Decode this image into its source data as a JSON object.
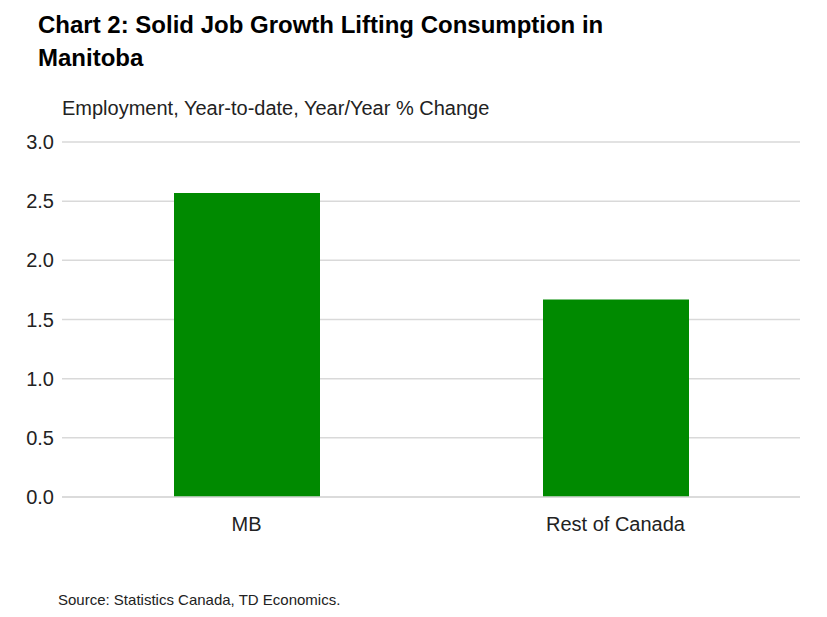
{
  "chart_data": {
    "type": "bar",
    "title": "Chart 2: Solid Job Growth Lifting Consumption in Manitoba",
    "subtitle": "Employment, Year-to-date, Year/Year % Change",
    "source": "Source: Statistics Canada, TD Economics.",
    "categories": [
      "MB",
      "Rest of Canada"
    ],
    "values": [
      2.57,
      1.67
    ],
    "color": "#008a00",
    "ylim": [
      0,
      3
    ],
    "yticks": [
      {
        "value": 0,
        "label": "0.0"
      },
      {
        "value": 0.5,
        "label": "0.5"
      },
      {
        "value": 1,
        "label": "1.0"
      },
      {
        "value": 1.5,
        "label": "1.5"
      },
      {
        "value": 2,
        "label": "2.0"
      },
      {
        "value": 2.5,
        "label": "2.5"
      },
      {
        "value": 3,
        "label": "3.0"
      }
    ],
    "grid": true
  }
}
